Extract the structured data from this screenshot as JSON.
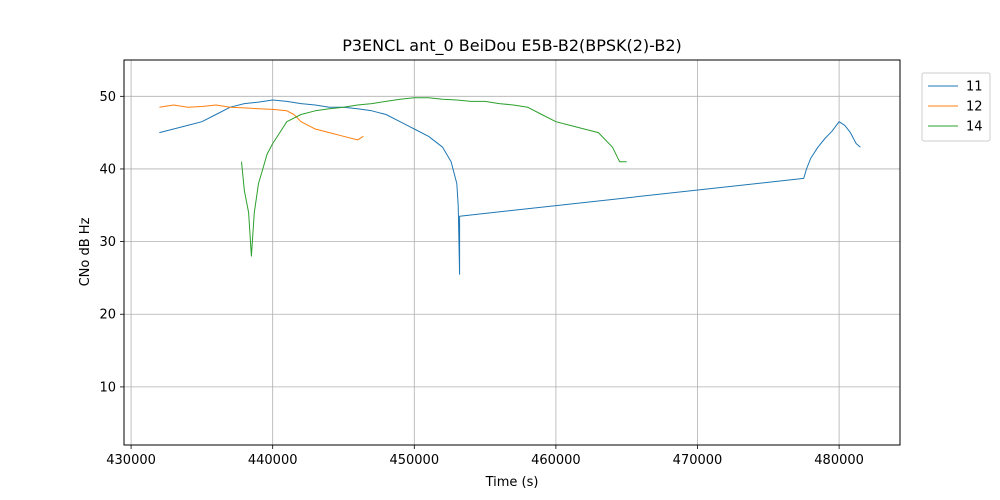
{
  "chart_data": {
    "type": "line",
    "title": "P3ENCL ant_0 BeiDou E5B-B2(BPSK(2)-B2)",
    "xlabel": "Time (s)",
    "ylabel": "CNo dB Hz",
    "xlim": [
      429500,
      484300
    ],
    "ylim": [
      2.0,
      55.0
    ],
    "x_ticks": [
      430000,
      440000,
      450000,
      460000,
      470000,
      480000
    ],
    "y_ticks": [
      10,
      20,
      30,
      40,
      50
    ],
    "grid": true,
    "legend_position": "outside-top-right",
    "series": [
      {
        "name": "11",
        "color": "#1f77b4",
        "x": [
          432000,
          433000,
          434000,
          435000,
          436000,
          437000,
          438000,
          439000,
          440000,
          441000,
          442000,
          443000,
          444000,
          445000,
          446000,
          447000,
          448000,
          449000,
          450000,
          451000,
          452000,
          452600,
          453000,
          453100,
          453200,
          453200,
          477500,
          477700,
          478000,
          478500,
          479000,
          479500,
          480000,
          480400,
          480800,
          481200,
          481500
        ],
        "y": [
          45,
          45.5,
          46,
          46.5,
          47.5,
          48.5,
          49,
          49.2,
          49.5,
          49.3,
          49,
          48.8,
          48.5,
          48.5,
          48.3,
          48,
          47.5,
          46.5,
          45.5,
          44.5,
          43,
          41,
          38,
          35,
          25.5,
          33.5,
          38.7,
          40,
          41.5,
          43,
          44.2,
          45.2,
          46.5,
          46,
          45,
          43.5,
          43
        ]
      },
      {
        "name": "12",
        "color": "#ff7f0e",
        "x": [
          432000,
          433000,
          434000,
          435000,
          436000,
          437000,
          438000,
          439000,
          440000,
          441000,
          441500,
          442000,
          443000,
          444000,
          445000,
          446000,
          446400
        ],
        "y": [
          48.5,
          48.8,
          48.5,
          48.6,
          48.8,
          48.5,
          48.4,
          48.3,
          48.2,
          48,
          47.5,
          46.5,
          45.5,
          45,
          44.5,
          44,
          44.5
        ]
      },
      {
        "name": "14",
        "color": "#2ca02c",
        "x": [
          437800,
          438000,
          438300,
          438500,
          438700,
          439000,
          439300,
          439600,
          440000,
          440500,
          441000,
          442000,
          443000,
          444000,
          445000,
          446000,
          447000,
          448000,
          449000,
          450000,
          451000,
          452000,
          453000,
          454000,
          455000,
          456000,
          457000,
          458000,
          459000,
          460000,
          461000,
          462000,
          463000,
          464000,
          464500,
          465000
        ],
        "y": [
          41,
          37,
          34,
          28,
          34,
          38,
          40,
          42,
          43.5,
          45,
          46.5,
          47.5,
          48,
          48.3,
          48.5,
          48.8,
          49,
          49.3,
          49.6,
          49.8,
          49.8,
          49.6,
          49.5,
          49.3,
          49.3,
          49,
          48.8,
          48.5,
          47.5,
          46.5,
          46,
          45.5,
          45,
          43,
          41,
          41
        ]
      }
    ]
  }
}
